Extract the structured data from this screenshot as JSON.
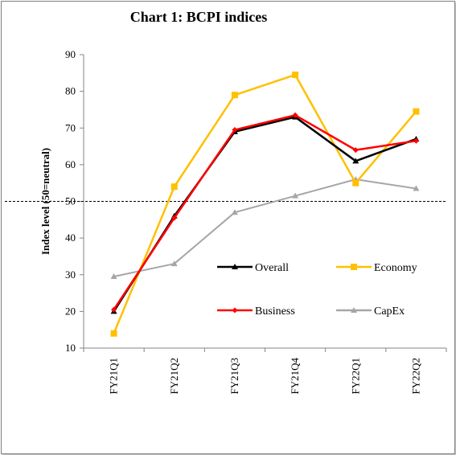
{
  "chart_data": {
    "type": "line",
    "title": "Chart 1: BCPI indices",
    "ylabel": "Index level  (50=neutral)",
    "xlabel": "",
    "ylim": [
      10,
      90
    ],
    "yticks": [
      10,
      20,
      30,
      40,
      50,
      60,
      70,
      80,
      90
    ],
    "categories": [
      "FY21Q1",
      "FY21Q2",
      "FY21Q3",
      "FY21Q4",
      "FY22Q1",
      "FY22Q2"
    ],
    "reference_line": {
      "value": 50,
      "style": "dashed",
      "color": "#000000"
    },
    "grid": false,
    "legend_placement": "inside lower-right",
    "series": [
      {
        "name": "Overall",
        "color": "#000000",
        "marker": "triangle",
        "values": [
          20,
          46,
          69,
          73,
          61,
          67
        ]
      },
      {
        "name": "Economy",
        "color": "#FFC000",
        "marker": "square",
        "values": [
          14,
          54,
          79,
          84.5,
          55,
          74.5
        ]
      },
      {
        "name": "Business",
        "color": "#FF0000",
        "marker": "diamond",
        "values": [
          20.5,
          45.5,
          69.5,
          73.5,
          64,
          66.5
        ]
      },
      {
        "name": "CapEx",
        "color": "#A6A6A6",
        "marker": "triangle",
        "values": [
          29.5,
          33,
          47,
          51.5,
          56,
          53.5
        ]
      }
    ]
  }
}
